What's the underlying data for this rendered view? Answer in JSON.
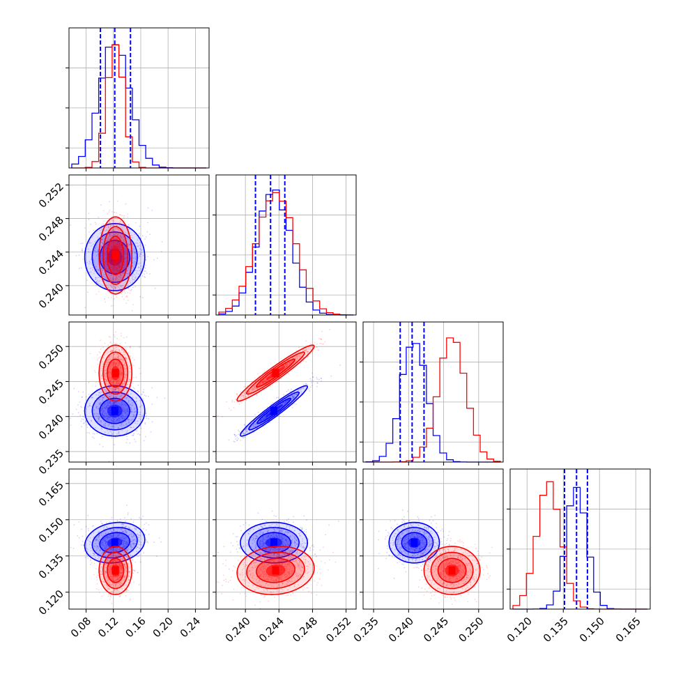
{
  "chart_data": {
    "type": "corner",
    "parameters": 4,
    "colors": {
      "series_a": "#0000ff",
      "series_b": "#ff0000"
    },
    "grid": true,
    "title": "",
    "axis_labels": [],
    "axes": [
      {
        "lim": [
          0.055,
          0.26
        ],
        "ticks": [
          0.08,
          0.12,
          0.16,
          0.2,
          0.24
        ],
        "tick_labels": [
          "0.08",
          "0.12",
          "0.16",
          "0.20",
          "0.24"
        ]
      },
      {
        "lim": [
          0.2365,
          0.2532
        ],
        "ticks": [
          0.24,
          0.244,
          0.248,
          0.252
        ],
        "tick_labels": [
          "0.240",
          "0.244",
          "0.248",
          "0.252"
        ]
      },
      {
        "lim": [
          0.2335,
          0.2535
        ],
        "ticks": [
          0.235,
          0.24,
          0.245,
          0.25
        ],
        "tick_labels": [
          "0.235",
          "0.240",
          "0.245",
          "0.250"
        ]
      },
      {
        "lim": [
          0.113,
          0.171
        ],
        "ticks": [
          0.12,
          0.135,
          0.15,
          0.165
        ],
        "tick_labels": [
          "0.120",
          "0.135",
          "0.150",
          "0.165"
        ]
      }
    ],
    "series": [
      {
        "color_key": "series_a",
        "mean": [
          0.122,
          0.2434,
          0.2408,
          0.1405
        ],
        "std": [
          0.022,
          0.002,
          0.0018,
          0.0042
        ],
        "corr": {
          "0-1": 0.0,
          "0-2": 0.0,
          "0-3": 0.15,
          "1-2": 0.96,
          "1-3": 0.0,
          "2-3": 0.0
        },
        "quantiles": [
          [
            0.101,
            0.122,
            0.145
          ],
          [
            0.2412,
            0.243,
            0.2447
          ],
          [
            0.2388,
            0.2405,
            0.2422
          ],
          [
            0.1355,
            0.1405,
            0.145
          ]
        ]
      },
      {
        "color_key": "series_b",
        "mean": [
          0.123,
          0.2436,
          0.2462,
          0.129
        ],
        "std": [
          0.012,
          0.0023,
          0.002,
          0.005
        ],
        "corr": {
          "0-1": 0.0,
          "0-2": 0.0,
          "0-3": 0.0,
          "1-2": 0.96,
          "1-3": 0.1,
          "2-3": 0.0
        }
      }
    ]
  }
}
